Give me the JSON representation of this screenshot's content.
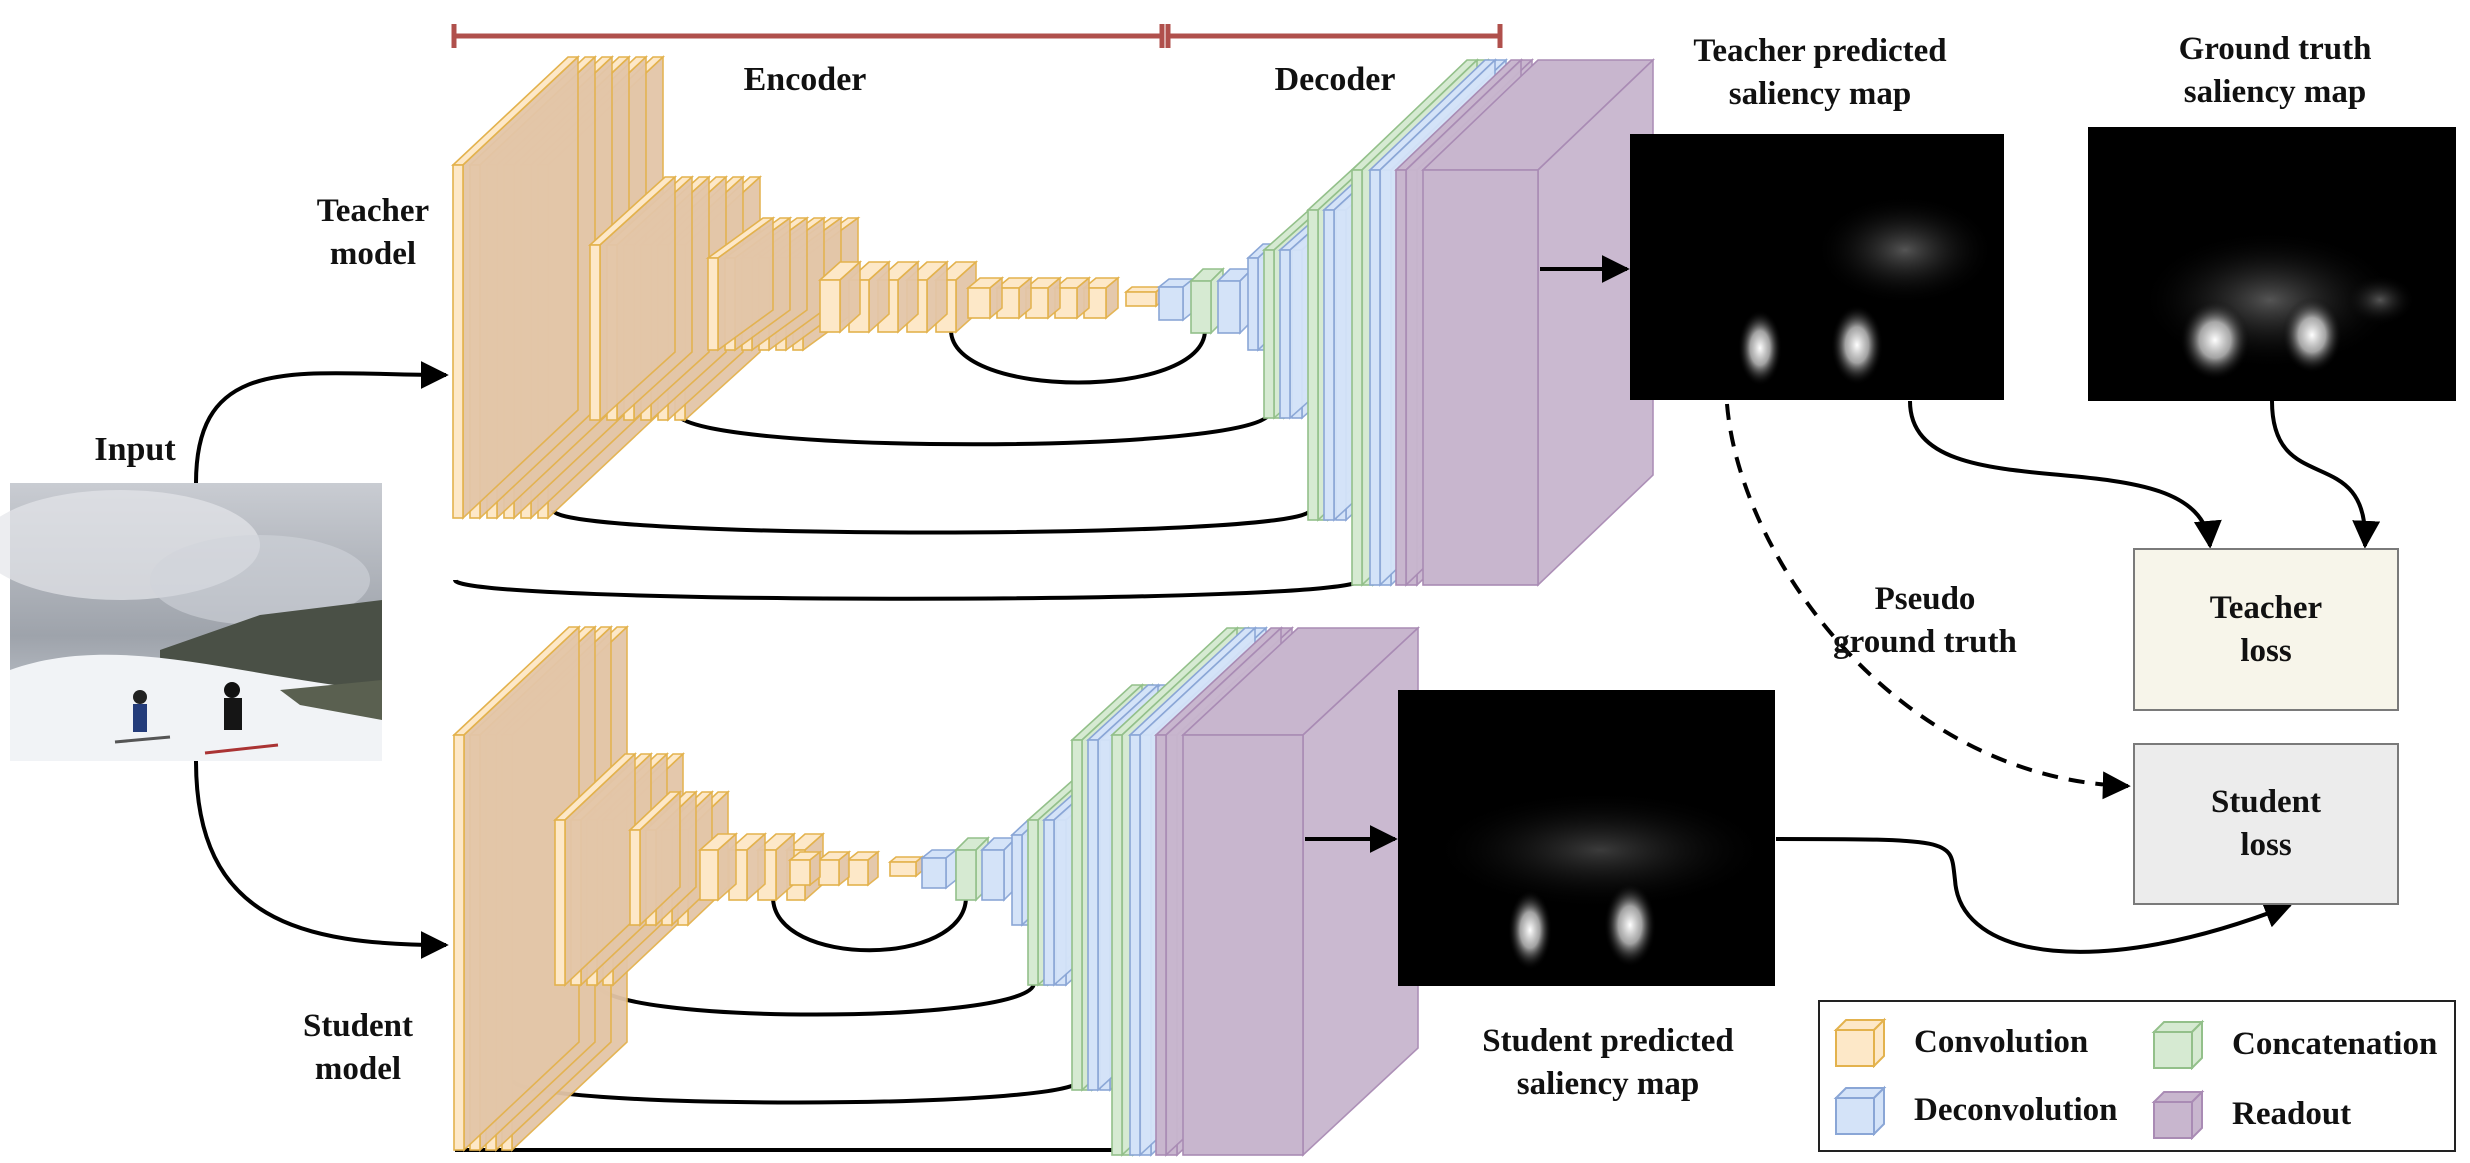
{
  "encoder_label": "Encoder",
  "decoder_label": "Decoder",
  "teacher_model_label": "Teacher model",
  "student_model_label": "Student model",
  "input_label": "Input",
  "teacher_map_label": "Teacher predicted saliency map",
  "gt_map_label": "Ground truth saliency map",
  "student_map_label": "Student predicted saliency map",
  "pseudo_label": "Pseudo ground truth",
  "teacher_loss_label": "Teacher loss",
  "student_loss_label": "Student loss",
  "legend": {
    "convolution": "Convolution",
    "deconvolution": "Deconvolution",
    "concatenation": "Concatenation",
    "readout": "Readout"
  },
  "colors": {
    "convolution": "#fde8c8",
    "convolution_edge": "#e3b24d",
    "convolution_shadow": "#e3c6a8",
    "deconvolution": "#d4e3f8",
    "deconvolution_edge": "#8aa6d6",
    "concatenation": "#d6ead2",
    "concatenation_edge": "#93c08a",
    "readout": "#c8b6ce",
    "readout_edge": "#a98bb4",
    "bracket": "#b0504c",
    "teacher_loss_fill": "#f7f5ea",
    "student_loss_fill": "#ececec"
  }
}
